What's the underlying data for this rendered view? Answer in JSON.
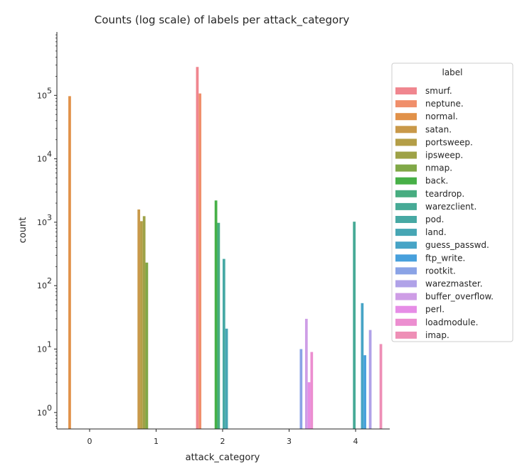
{
  "chart_data": {
    "type": "bar",
    "title": "Counts (log scale) of labels per attack_category",
    "xlabel": "attack_category",
    "ylabel": "count",
    "yscale": "log",
    "ylim": [
      0.55,
      1000000
    ],
    "categories": [
      "0",
      "1",
      "2",
      "3",
      "4"
    ],
    "y_ticks": [
      {
        "base": "10",
        "exp": "0",
        "value": 1
      },
      {
        "base": "10",
        "exp": "1",
        "value": 10
      },
      {
        "base": "10",
        "exp": "2",
        "value": 100
      },
      {
        "base": "10",
        "exp": "3",
        "value": 1000
      },
      {
        "base": "10",
        "exp": "4",
        "value": 10000
      },
      {
        "base": "10",
        "exp": "5",
        "value": 100000
      }
    ],
    "legend": {
      "title": "label",
      "placement": "right"
    },
    "series": [
      {
        "name": "smurf.",
        "color": "#f0868f",
        "values": [
          null,
          null,
          280790,
          null,
          null
        ]
      },
      {
        "name": "neptune.",
        "color": "#f08f6b",
        "values": [
          null,
          null,
          107201,
          null,
          null
        ]
      },
      {
        "name": "normal.",
        "color": "#e19149",
        "values": [
          97278,
          null,
          null,
          null,
          null
        ]
      },
      {
        "name": "satan.",
        "color": "#c99949",
        "values": [
          null,
          1589,
          null,
          null,
          null
        ]
      },
      {
        "name": "portsweep.",
        "color": "#b49e47",
        "values": [
          null,
          1040,
          null,
          null,
          null
        ]
      },
      {
        "name": "ipsweep.",
        "color": "#9ea247",
        "values": [
          null,
          1247,
          null,
          null,
          null
        ]
      },
      {
        "name": "nmap.",
        "color": "#80a847",
        "values": [
          null,
          231,
          null,
          null,
          null
        ]
      },
      {
        "name": "back.",
        "color": "#47b047",
        "values": [
          null,
          null,
          2203,
          null,
          null
        ]
      },
      {
        "name": "teardrop.",
        "color": "#47ad80",
        "values": [
          null,
          null,
          979,
          null,
          null
        ]
      },
      {
        "name": "warezclient.",
        "color": "#47aa96",
        "values": [
          null,
          null,
          null,
          null,
          1020
        ]
      },
      {
        "name": "pod.",
        "color": "#47a9a4",
        "values": [
          null,
          null,
          264,
          null,
          null
        ]
      },
      {
        "name": "land.",
        "color": "#47a6b4",
        "values": [
          null,
          null,
          21,
          null,
          null
        ]
      },
      {
        "name": "guess_passwd.",
        "color": "#47a4c6",
        "values": [
          null,
          null,
          null,
          null,
          53
        ]
      },
      {
        "name": "ftp_write.",
        "color": "#47a0dc",
        "values": [
          null,
          null,
          null,
          null,
          8
        ]
      },
      {
        "name": "rootkit.",
        "color": "#8aa3e6",
        "values": [
          null,
          null,
          null,
          10,
          null
        ]
      },
      {
        "name": "warezmaster.",
        "color": "#b0a2e8",
        "values": [
          null,
          null,
          null,
          null,
          20
        ]
      },
      {
        "name": "buffer_overflow.",
        "color": "#ce9de6",
        "values": [
          null,
          null,
          null,
          30,
          null
        ]
      },
      {
        "name": "perl.",
        "color": "#e68de6",
        "values": [
          null,
          null,
          null,
          3,
          null
        ]
      },
      {
        "name": "loadmodule.",
        "color": "#ec8ed0",
        "values": [
          null,
          null,
          null,
          9,
          null
        ]
      },
      {
        "name": "imap.",
        "color": "#ee8fb6",
        "values": [
          null,
          null,
          null,
          null,
          12
        ]
      }
    ]
  }
}
